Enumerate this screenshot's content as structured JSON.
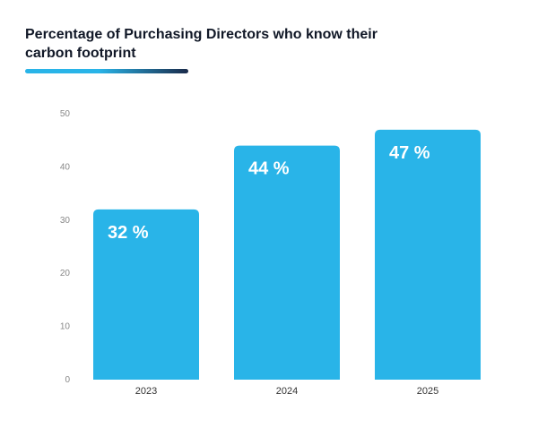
{
  "title": "Percentage of Purchasing Directors who know their carbon footprint",
  "colors": {
    "bar": "#29b4e8",
    "title": "#111827",
    "accent_start": "#29b4e8",
    "accent_end": "#1a2a4a",
    "tick": "#888888"
  },
  "chart_data": {
    "type": "bar",
    "title": "Percentage of Purchasing Directors who know their carbon footprint",
    "categories": [
      "2023",
      "2024",
      "2025"
    ],
    "values": [
      32,
      44,
      47
    ],
    "data_labels": [
      "32 %",
      "44 %",
      "47 %"
    ],
    "ylim": [
      0,
      50
    ],
    "yticks": [
      0,
      10,
      20,
      30,
      40,
      50
    ],
    "xlabel": "",
    "ylabel": "",
    "grid": false,
    "legend": "none"
  }
}
